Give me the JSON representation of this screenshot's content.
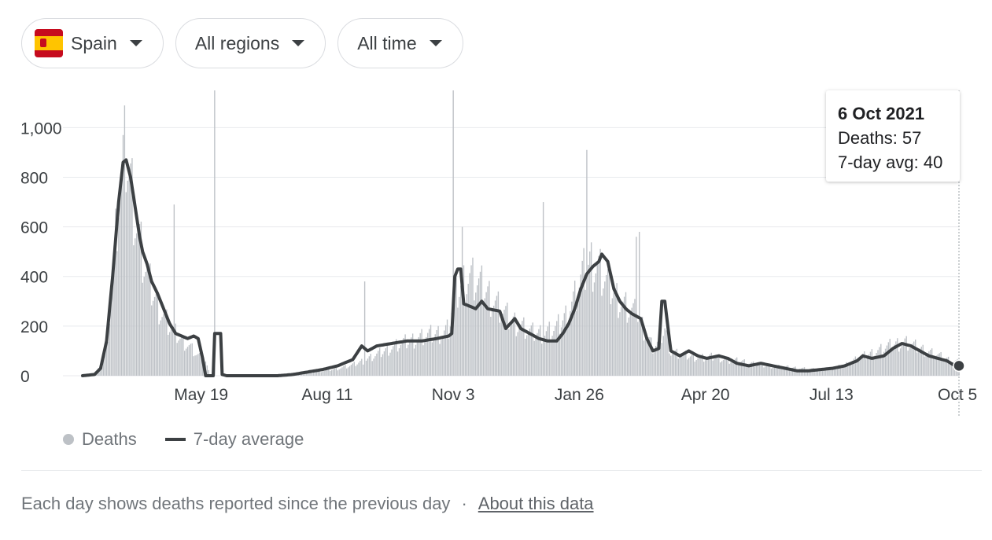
{
  "filters": {
    "country": {
      "label": "Spain",
      "icon": "spain-flag-icon"
    },
    "region": {
      "label": "All regions"
    },
    "time": {
      "label": "All time"
    }
  },
  "colors": {
    "bar": "#bdc1c6",
    "line": "#3c4043",
    "grid": "#e8eaed",
    "flag_red": "#c60b1e",
    "flag_yellow": "#ffc400"
  },
  "tooltip": {
    "date": "6 Oct 2021",
    "deaths": "Deaths: 57",
    "avg": "7-day avg: 40"
  },
  "chart_data": {
    "type": "bar",
    "title": "",
    "xlabel": "",
    "ylabel": "",
    "ylim": [
      0,
      1150
    ],
    "yticks": [
      0,
      200,
      400,
      600,
      800,
      1000
    ],
    "ytick_labels": [
      "0",
      "200",
      "400",
      "600",
      "800",
      "1,000"
    ],
    "date_range": [
      "2020-03-01",
      "2021-10-06"
    ],
    "xticks": [
      {
        "label": "May 19",
        "index": 79
      },
      {
        "label": "Aug 11",
        "index": 163
      },
      {
        "label": "Nov 3",
        "index": 247
      },
      {
        "label": "Jan 26",
        "index": 331
      },
      {
        "label": "Apr 20",
        "index": 415
      },
      {
        "label": "Jul 13",
        "index": 499
      },
      {
        "label": "Oct 5",
        "index": 583
      }
    ],
    "series": [
      {
        "name": "Deaths",
        "type": "bar",
        "anchors": [
          [
            0,
            0
          ],
          [
            8,
            5
          ],
          [
            12,
            30
          ],
          [
            16,
            120
          ],
          [
            20,
            400
          ],
          [
            24,
            760
          ],
          [
            27,
            880
          ],
          [
            29,
            950
          ],
          [
            32,
            820
          ],
          [
            36,
            640
          ],
          [
            40,
            500
          ],
          [
            45,
            380
          ],
          [
            50,
            300
          ],
          [
            55,
            240
          ],
          [
            60,
            190
          ],
          [
            66,
            150
          ],
          [
            72,
            120
          ],
          [
            76,
            90
          ],
          [
            79,
            80
          ],
          [
            82,
            60
          ],
          [
            85,
            0
          ],
          [
            93,
            0
          ],
          [
            95,
            0
          ],
          [
            100,
            0
          ],
          [
            120,
            0
          ],
          [
            140,
            3
          ],
          [
            150,
            12
          ],
          [
            160,
            20
          ],
          [
            170,
            30
          ],
          [
            180,
            45
          ],
          [
            190,
            70
          ],
          [
            200,
            100
          ],
          [
            210,
            130
          ],
          [
            220,
            150
          ],
          [
            230,
            170
          ],
          [
            240,
            180
          ],
          [
            244,
            200
          ],
          [
            247,
            310
          ],
          [
            252,
            380
          ],
          [
            258,
            420
          ],
          [
            262,
            400
          ],
          [
            268,
            360
          ],
          [
            276,
            300
          ],
          [
            284,
            240
          ],
          [
            292,
            210
          ],
          [
            300,
            180
          ],
          [
            308,
            180
          ],
          [
            316,
            200
          ],
          [
            322,
            250
          ],
          [
            328,
            330
          ],
          [
            333,
            420
          ],
          [
            338,
            480
          ],
          [
            344,
            450
          ],
          [
            350,
            390
          ],
          [
            356,
            330
          ],
          [
            362,
            290
          ],
          [
            370,
            250
          ],
          [
            376,
            170
          ],
          [
            380,
            120
          ],
          [
            384,
            140
          ],
          [
            388,
            200
          ],
          [
            392,
            100
          ],
          [
            398,
            90
          ],
          [
            406,
            80
          ],
          [
            415,
            75
          ],
          [
            422,
            80
          ],
          [
            430,
            65
          ],
          [
            440,
            60
          ],
          [
            450,
            45
          ],
          [
            460,
            40
          ],
          [
            470,
            35
          ],
          [
            480,
            30
          ],
          [
            490,
            25
          ],
          [
            500,
            30
          ],
          [
            508,
            45
          ],
          [
            516,
            70
          ],
          [
            524,
            90
          ],
          [
            532,
            110
          ],
          [
            540,
            130
          ],
          [
            548,
            140
          ],
          [
            556,
            120
          ],
          [
            564,
            100
          ],
          [
            572,
            80
          ],
          [
            580,
            60
          ],
          [
            584,
            57
          ]
        ],
        "spikes": [
          [
            61,
            690
          ],
          [
            88,
            1150
          ],
          [
            247,
            1150
          ],
          [
            253,
            600
          ],
          [
            307,
            700
          ],
          [
            336,
            910
          ],
          [
            369,
            560
          ],
          [
            371,
            580
          ],
          [
            188,
            380
          ]
        ]
      },
      {
        "name": "7-day average",
        "type": "line",
        "anchors": [
          [
            0,
            0
          ],
          [
            8,
            5
          ],
          [
            12,
            30
          ],
          [
            16,
            140
          ],
          [
            20,
            400
          ],
          [
            24,
            700
          ],
          [
            27,
            860
          ],
          [
            29,
            870
          ],
          [
            32,
            800
          ],
          [
            36,
            640
          ],
          [
            38,
            560
          ],
          [
            40,
            500
          ],
          [
            43,
            450
          ],
          [
            46,
            380
          ],
          [
            50,
            330
          ],
          [
            54,
            270
          ],
          [
            58,
            210
          ],
          [
            62,
            170
          ],
          [
            66,
            160
          ],
          [
            70,
            150
          ],
          [
            74,
            160
          ],
          [
            77,
            150
          ],
          [
            80,
            70
          ],
          [
            82,
            0
          ],
          [
            87,
            0
          ],
          [
            88,
            170
          ],
          [
            92,
            170
          ],
          [
            93,
            5
          ],
          [
            96,
            0
          ],
          [
            100,
            0
          ],
          [
            110,
            0
          ],
          [
            120,
            0
          ],
          [
            130,
            0
          ],
          [
            140,
            5
          ],
          [
            150,
            15
          ],
          [
            160,
            25
          ],
          [
            170,
            40
          ],
          [
            180,
            65
          ],
          [
            186,
            120
          ],
          [
            190,
            100
          ],
          [
            196,
            120
          ],
          [
            206,
            130
          ],
          [
            216,
            140
          ],
          [
            226,
            140
          ],
          [
            236,
            150
          ],
          [
            244,
            160
          ],
          [
            246,
            170
          ],
          [
            248,
            400
          ],
          [
            250,
            430
          ],
          [
            252,
            430
          ],
          [
            254,
            290
          ],
          [
            258,
            280
          ],
          [
            262,
            270
          ],
          [
            266,
            300
          ],
          [
            270,
            270
          ],
          [
            278,
            260
          ],
          [
            282,
            190
          ],
          [
            288,
            230
          ],
          [
            292,
            190
          ],
          [
            298,
            170
          ],
          [
            304,
            150
          ],
          [
            310,
            140
          ],
          [
            316,
            140
          ],
          [
            320,
            170
          ],
          [
            324,
            210
          ],
          [
            328,
            270
          ],
          [
            332,
            350
          ],
          [
            336,
            410
          ],
          [
            340,
            440
          ],
          [
            344,
            460
          ],
          [
            346,
            490
          ],
          [
            350,
            460
          ],
          [
            354,
            350
          ],
          [
            358,
            300
          ],
          [
            362,
            270
          ],
          [
            366,
            250
          ],
          [
            372,
            230
          ],
          [
            376,
            150
          ],
          [
            380,
            100
          ],
          [
            384,
            110
          ],
          [
            386,
            300
          ],
          [
            388,
            300
          ],
          [
            390,
            200
          ],
          [
            392,
            100
          ],
          [
            398,
            80
          ],
          [
            404,
            100
          ],
          [
            410,
            80
          ],
          [
            416,
            70
          ],
          [
            424,
            80
          ],
          [
            430,
            70
          ],
          [
            436,
            50
          ],
          [
            444,
            40
          ],
          [
            452,
            50
          ],
          [
            460,
            40
          ],
          [
            468,
            30
          ],
          [
            476,
            20
          ],
          [
            484,
            20
          ],
          [
            492,
            25
          ],
          [
            500,
            30
          ],
          [
            508,
            40
          ],
          [
            516,
            60
          ],
          [
            520,
            80
          ],
          [
            526,
            70
          ],
          [
            534,
            80
          ],
          [
            540,
            110
          ],
          [
            546,
            130
          ],
          [
            552,
            120
          ],
          [
            558,
            100
          ],
          [
            564,
            80
          ],
          [
            570,
            70
          ],
          [
            576,
            60
          ],
          [
            580,
            45
          ],
          [
            584,
            40
          ]
        ]
      }
    ]
  },
  "legend": {
    "deaths_label": "Deaths",
    "avg_label": "7-day average"
  },
  "footer": {
    "note": "Each day shows deaths reported since the previous day",
    "separator": "·",
    "link_label": "About this data"
  }
}
